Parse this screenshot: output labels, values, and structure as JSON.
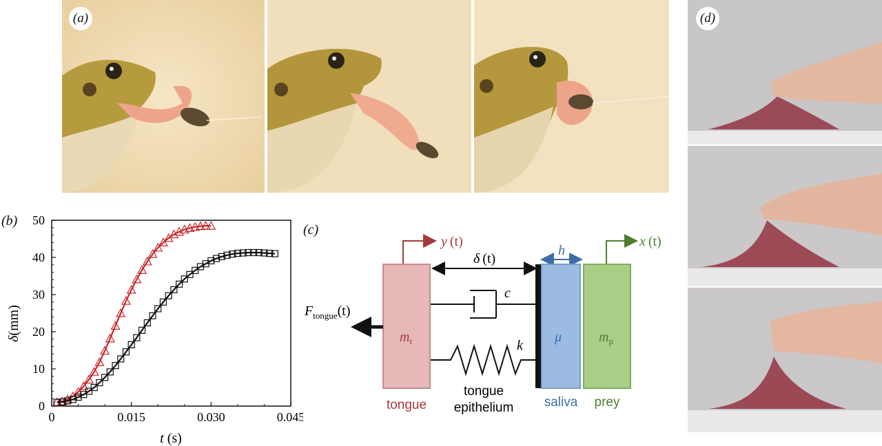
{
  "panel_labels": {
    "a": "(a)",
    "b": "(b)",
    "c": "(c)",
    "d": "(d)"
  },
  "photos_a": [
    {
      "name": "frog-tongue-extended"
    },
    {
      "name": "frog-tongue-stretched"
    },
    {
      "name": "frog-tongue-retracting"
    }
  ],
  "photos_d": [
    {
      "name": "finger-tongue-contact"
    },
    {
      "name": "finger-tongue-lift"
    },
    {
      "name": "finger-tongue-stretch"
    }
  ],
  "chart_data": {
    "type": "scatter",
    "xlabel_italic": "t",
    "xlabel_unit": " (s)",
    "ylabel_symbol": "δ",
    "ylabel_unit": "(mm)",
    "xlim": [
      0,
      0.045
    ],
    "ylim": [
      0,
      50
    ],
    "xticks": [
      "0",
      "0.015",
      "0.030",
      "0.045"
    ],
    "yticks": [
      "0",
      "10",
      "20",
      "30",
      "40",
      "50"
    ],
    "xtick_values": [
      0,
      0.015,
      0.03,
      0.045
    ],
    "ytick_values": [
      0,
      10,
      20,
      30,
      40,
      50
    ],
    "series": [
      {
        "marker": "triangle",
        "color": "#c8282a",
        "x": [
          0.001,
          0.002,
          0.003,
          0.004,
          0.005,
          0.006,
          0.007,
          0.008,
          0.009,
          0.01,
          0.011,
          0.012,
          0.013,
          0.014,
          0.015,
          0.016,
          0.017,
          0.018,
          0.019,
          0.02,
          0.021,
          0.022,
          0.023,
          0.024,
          0.025,
          0.026,
          0.027,
          0.028,
          0.029,
          0.03
        ],
        "y": [
          1.0,
          1.3,
          1.8,
          2.6,
          3.8,
          5.3,
          7.1,
          9.2,
          11.8,
          14.9,
          18.2,
          21.6,
          25.0,
          28.3,
          31.3,
          34.1,
          36.6,
          38.9,
          40.9,
          42.6,
          44.0,
          45.2,
          46.2,
          46.9,
          47.5,
          47.9,
          48.2,
          48.4,
          48.5,
          48.5
        ]
      },
      {
        "marker": "square",
        "color": "#111111",
        "x": [
          0.001,
          0.002,
          0.003,
          0.004,
          0.005,
          0.006,
          0.007,
          0.008,
          0.009,
          0.01,
          0.011,
          0.012,
          0.013,
          0.014,
          0.015,
          0.016,
          0.017,
          0.018,
          0.019,
          0.02,
          0.021,
          0.022,
          0.023,
          0.024,
          0.025,
          0.026,
          0.027,
          0.028,
          0.029,
          0.03,
          0.031,
          0.032,
          0.033,
          0.034,
          0.035,
          0.036,
          0.037,
          0.038,
          0.039,
          0.04,
          0.041,
          0.042
        ],
        "y": [
          1.0,
          1.1,
          1.4,
          1.8,
          2.4,
          3.1,
          4.0,
          5.0,
          6.3,
          7.7,
          9.2,
          10.9,
          12.7,
          14.6,
          16.5,
          18.4,
          20.4,
          22.4,
          24.3,
          26.2,
          28.0,
          29.7,
          31.3,
          32.8,
          34.2,
          35.4,
          36.5,
          37.5,
          38.3,
          39.1,
          39.7,
          40.2,
          40.6,
          40.9,
          41.1,
          41.2,
          41.3,
          41.3,
          41.3,
          41.2,
          41.1,
          41.0
        ]
      }
    ]
  },
  "diagram_c": {
    "y_var": "y",
    "y_arg": "(t)",
    "x_var": "x",
    "x_arg": "(t)",
    "delta_var": "δ",
    "delta_arg": "(t)",
    "h_label": "h",
    "c_label": "c",
    "k_label": "k",
    "force_main": "F",
    "force_sub": "tongue",
    "force_arg": "(t)",
    "mt_main": "m",
    "mt_sub": "t",
    "mu_label": "μ",
    "mp_main": "m",
    "mp_sub": "p",
    "tongue_label": "tongue",
    "epithelium_line1": "tongue",
    "epithelium_line2": "epithelium",
    "saliva_label": "saliva",
    "prey_label": "prey",
    "colors": {
      "tongue": "#a33a3a",
      "tongue_fill": "#e6b8b8",
      "saliva": "#3d6fa6",
      "saliva_fill": "#9bbbe2",
      "prey": "#4f7d2c",
      "prey_fill": "#a9cf87"
    }
  }
}
